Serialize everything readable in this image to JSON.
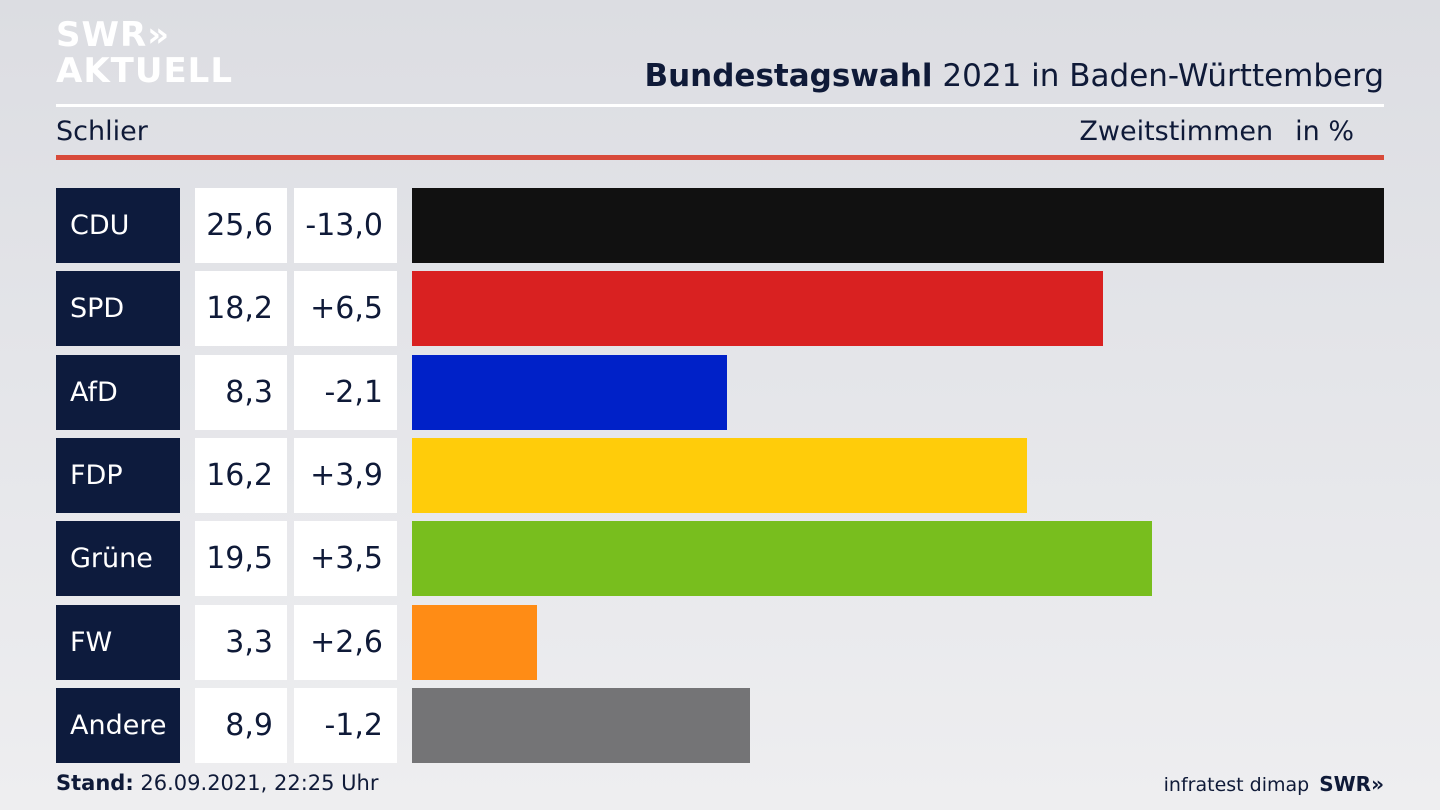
{
  "logo": {
    "line1": "SWR»",
    "line2": "AKTUELL"
  },
  "header": {
    "title_bold": "Bundestagswahl",
    "title_rest": " 2021 in Baden-Württemberg",
    "location": "Schlier",
    "metric": "Zweitstimmen",
    "unit": "in %"
  },
  "chart_data": {
    "type": "bar",
    "orientation": "horizontal",
    "categories": [
      "CDU",
      "SPD",
      "AfD",
      "FDP",
      "Grüne",
      "FW",
      "Andere"
    ],
    "values": [
      25.6,
      18.2,
      8.3,
      16.2,
      19.5,
      3.3,
      8.9
    ],
    "values_display": [
      "25,6",
      "18,2",
      "8,3",
      "16,2",
      "19,5",
      "3,3",
      "8,9"
    ],
    "changes": [
      -13.0,
      6.5,
      -2.1,
      3.9,
      3.5,
      2.6,
      -1.2
    ],
    "changes_display": [
      "-13,0",
      "+6,5",
      "-2,1",
      "+3,9",
      "+3,5",
      "+2,6",
      "-1,2"
    ],
    "colors": [
      "#111111",
      "#d92121",
      "#0021c8",
      "#ffcc0a",
      "#78be1e",
      "#ff8c15",
      "#747476"
    ],
    "xlim": [
      0,
      25.6
    ],
    "grid": false,
    "legend": "none"
  },
  "footer": {
    "stand_label": "Stand:",
    "stand_value": " 26.09.2021, 22:25 Uhr",
    "source": "infratest dimap",
    "brand": "SWR»"
  }
}
